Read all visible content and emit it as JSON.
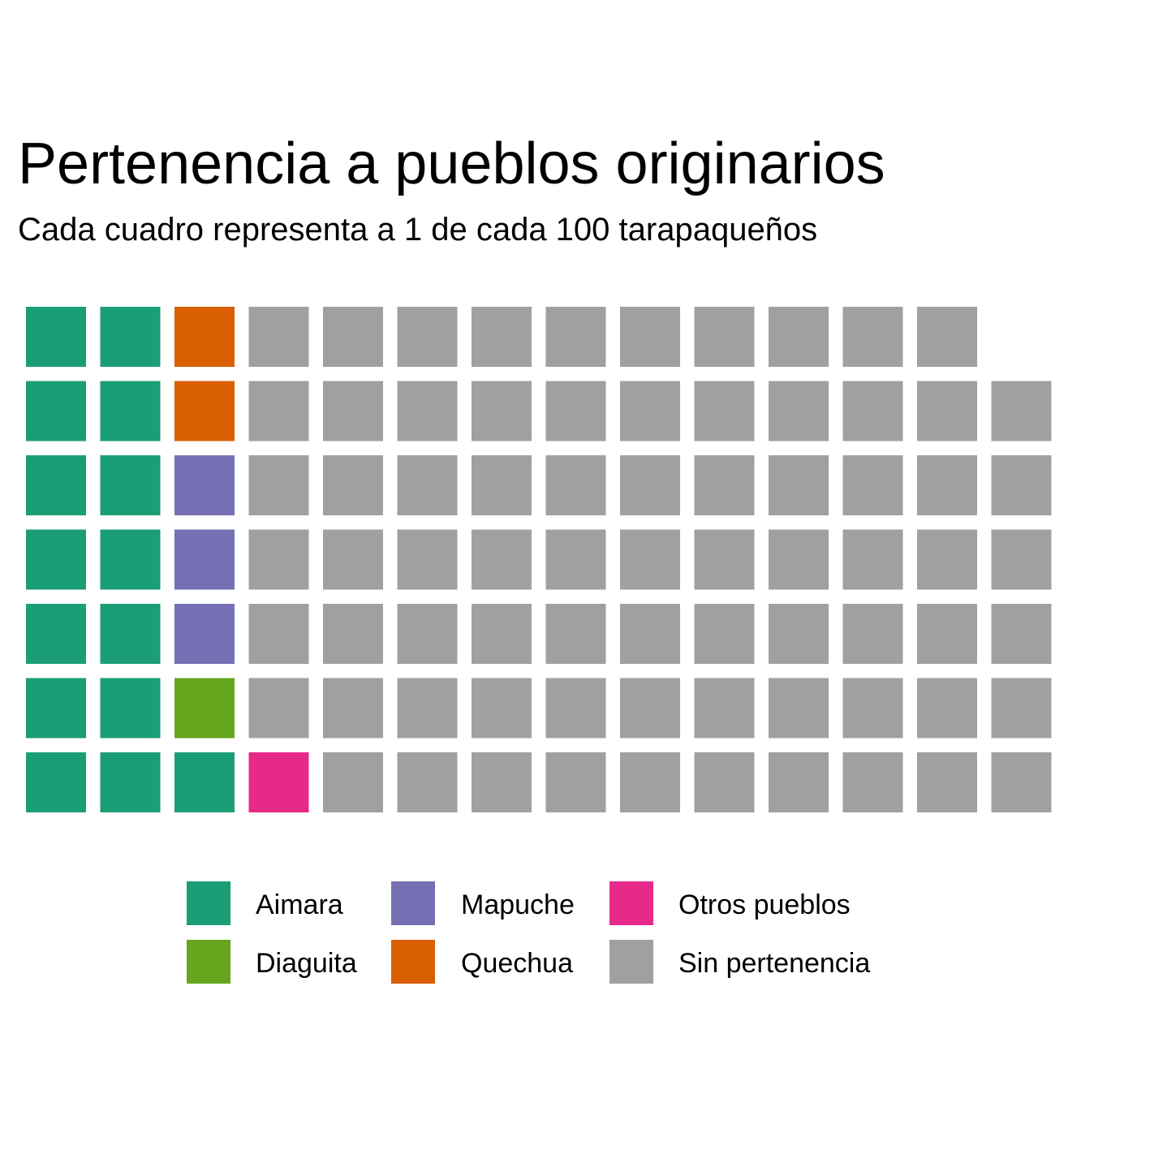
{
  "chart_data": {
    "type": "waffle",
    "title": "Pertenencia a pueblos originarios",
    "subtitle": "Cada cuadro representa a 1 de cada 100 tarapaqueños",
    "rows": 7,
    "columns": 14,
    "fill_order": "column-wise from bottom-left, bottom to top",
    "series": [
      {
        "name": "Aimara",
        "value": 15,
        "color": "#1b9e77"
      },
      {
        "name": "Diaguita",
        "value": 1,
        "color": "#66a61e"
      },
      {
        "name": "Mapuche",
        "value": 3,
        "color": "#7570b3"
      },
      {
        "name": "Quechua",
        "value": 2,
        "color": "#d95f02"
      },
      {
        "name": "Otros pueblos",
        "value": 1,
        "color": "#e7298a"
      },
      {
        "name": "Sin pertenencia",
        "value": 75,
        "color": "#a0a0a0"
      }
    ],
    "legend": {
      "position": "bottom",
      "columns": [
        [
          "Aimara",
          "Diaguita"
        ],
        [
          "Mapuche",
          "Quechua"
        ],
        [
          "Otros pueblos",
          "Sin pertenencia"
        ]
      ]
    }
  }
}
